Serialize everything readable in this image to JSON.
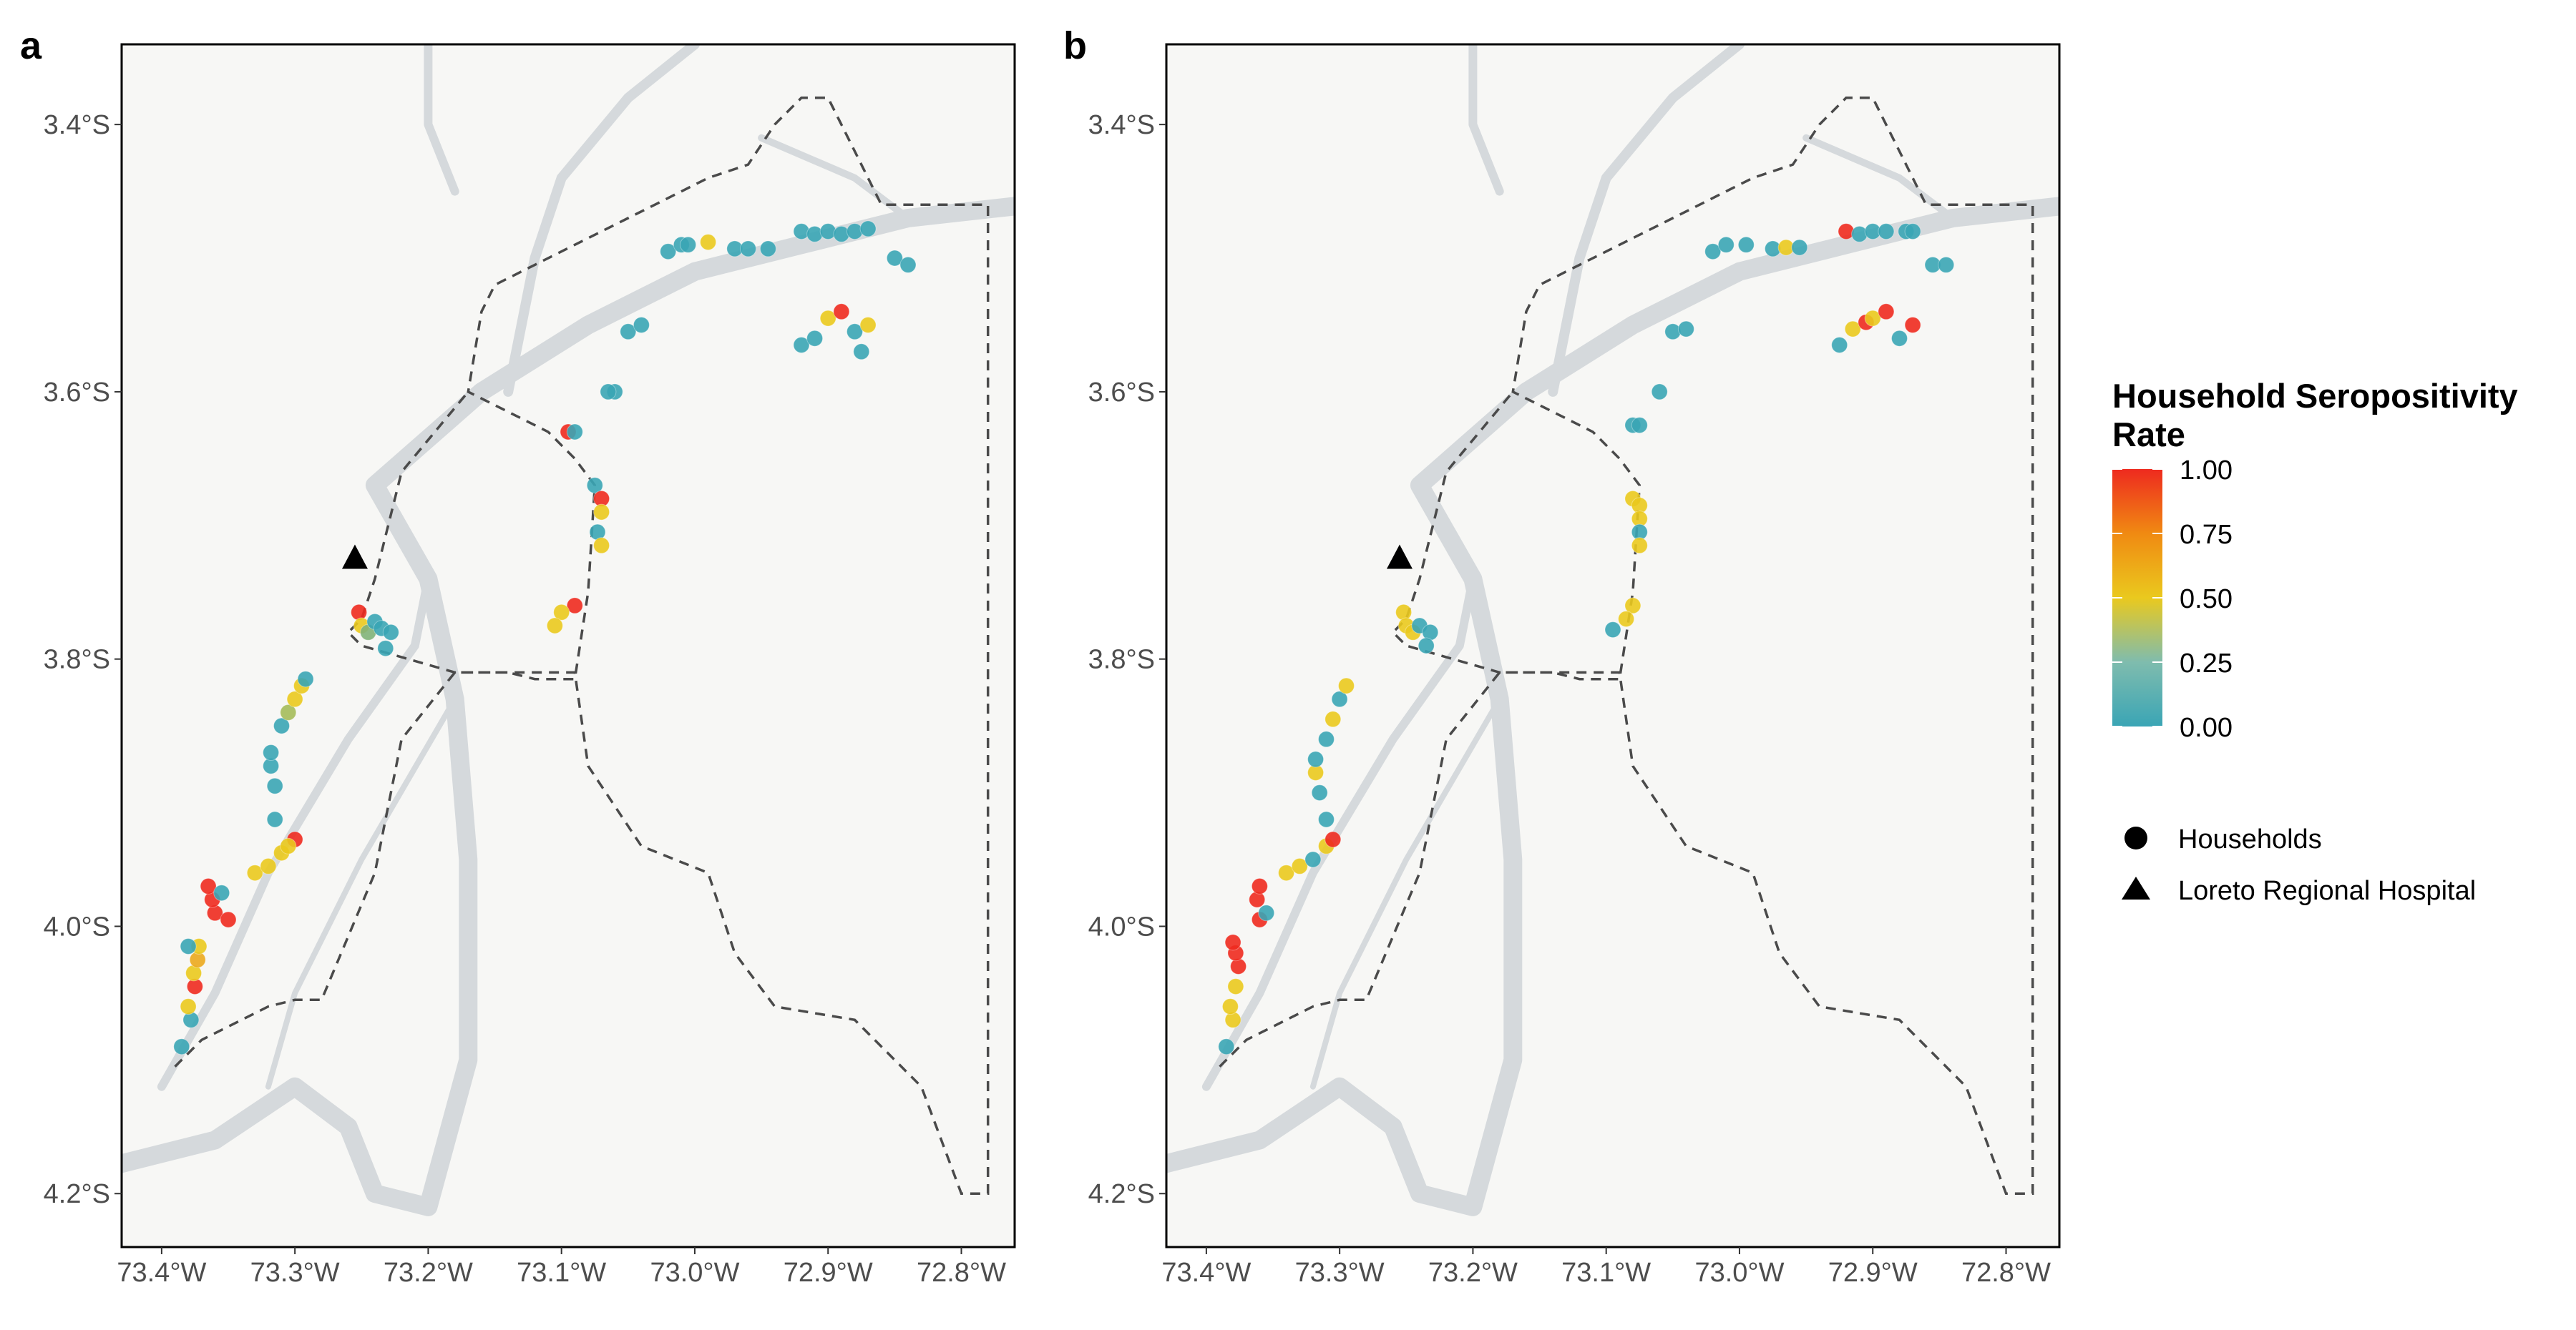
{
  "figure": {
    "panels": [
      {
        "letter": "a"
      },
      {
        "letter": "b"
      }
    ]
  },
  "axes": {
    "x_ticks": [
      "73.4°W",
      "73.3°W",
      "73.2°W",
      "73.1°W",
      "73.0°W",
      "72.9°W",
      "72.8°W"
    ],
    "x_tick_values": [
      -73.4,
      -73.3,
      -73.2,
      -73.1,
      -73.0,
      -72.9,
      -72.8
    ],
    "y_ticks": [
      "3.4°S",
      "3.6°S",
      "3.8°S",
      "4.0°S",
      "4.2°S"
    ],
    "y_tick_values": [
      -3.4,
      -3.6,
      -3.8,
      -4.0,
      -4.2
    ],
    "xlim": [
      -73.43,
      -72.76
    ],
    "ylim": [
      -4.24,
      -3.34
    ]
  },
  "legend": {
    "title_line1": "Household Seropositivity",
    "title_line2": "Rate",
    "colorbar_labels": [
      "1.00",
      "0.75",
      "0.50",
      "0.25",
      "0.00"
    ],
    "colorbar_values": [
      1.0,
      0.75,
      0.5,
      0.25,
      0.0
    ],
    "colors": {
      "low": "#3aa5b5",
      "mid": "#eac91e",
      "high": "#ee2a1f"
    },
    "households_label": "Households",
    "hospital_label": "Loreto Regional Hospital"
  },
  "chart_data": [
    {
      "type": "scatter",
      "panel": "a",
      "hospital": {
        "lon": -73.255,
        "lat": -3.725
      },
      "points": [
        [
          -73.385,
          -4.09,
          0
        ],
        [
          -73.378,
          -4.07,
          0
        ],
        [
          -73.38,
          -4.06,
          0.5
        ],
        [
          -73.375,
          -4.045,
          1
        ],
        [
          -73.376,
          -4.035,
          0.5
        ],
        [
          -73.373,
          -4.025,
          0.6
        ],
        [
          -73.372,
          -4.015,
          0.5
        ],
        [
          -73.38,
          -4.015,
          0
        ],
        [
          -73.36,
          -3.99,
          1
        ],
        [
          -73.35,
          -3.995,
          1
        ],
        [
          -73.362,
          -3.98,
          1
        ],
        [
          -73.365,
          -3.97,
          1
        ],
        [
          -73.355,
          -3.975,
          0
        ],
        [
          -73.33,
          -3.96,
          0.5
        ],
        [
          -73.32,
          -3.955,
          0.5
        ],
        [
          -73.31,
          -3.945,
          0.5
        ],
        [
          -73.3,
          -3.935,
          1
        ],
        [
          -73.305,
          -3.94,
          0.5
        ],
        [
          -73.315,
          -3.92,
          0
        ],
        [
          -73.315,
          -3.895,
          0
        ],
        [
          -73.318,
          -3.88,
          0
        ],
        [
          -73.318,
          -3.87,
          0
        ],
        [
          -73.31,
          -3.85,
          0
        ],
        [
          -73.305,
          -3.84,
          0.3
        ],
        [
          -73.3,
          -3.83,
          0.5
        ],
        [
          -73.295,
          -3.82,
          0.5
        ],
        [
          -73.292,
          -3.815,
          0
        ],
        [
          -73.252,
          -3.765,
          1
        ],
        [
          -73.25,
          -3.775,
          0.5
        ],
        [
          -73.245,
          -3.78,
          0.2
        ],
        [
          -73.24,
          -3.772,
          0
        ],
        [
          -73.235,
          -3.777,
          0
        ],
        [
          -73.228,
          -3.78,
          0
        ],
        [
          -73.232,
          -3.792,
          0
        ],
        [
          -73.095,
          -3.63,
          1
        ],
        [
          -73.09,
          -3.63,
          0
        ],
        [
          -73.06,
          -3.6,
          0
        ],
        [
          -73.065,
          -3.6,
          0
        ],
        [
          -73.05,
          -3.555,
          0
        ],
        [
          -73.04,
          -3.55,
          0
        ],
        [
          -73.075,
          -3.67,
          0
        ],
        [
          -73.07,
          -3.68,
          1
        ],
        [
          -73.07,
          -3.69,
          0.5
        ],
        [
          -73.073,
          -3.705,
          0
        ],
        [
          -73.07,
          -3.715,
          0.5
        ],
        [
          -73.09,
          -3.76,
          1
        ],
        [
          -73.1,
          -3.765,
          0.5
        ],
        [
          -73.105,
          -3.775,
          0.5
        ],
        [
          -73.02,
          -3.495,
          0
        ],
        [
          -73.01,
          -3.49,
          0
        ],
        [
          -73.005,
          -3.49,
          0
        ],
        [
          -72.99,
          -3.488,
          0.5
        ],
        [
          -72.97,
          -3.493,
          0
        ],
        [
          -72.96,
          -3.493,
          0
        ],
        [
          -72.945,
          -3.493,
          0
        ],
        [
          -72.92,
          -3.48,
          0
        ],
        [
          -72.91,
          -3.482,
          0
        ],
        [
          -72.9,
          -3.48,
          0
        ],
        [
          -72.89,
          -3.482,
          0
        ],
        [
          -72.88,
          -3.48,
          0
        ],
        [
          -72.87,
          -3.478,
          0
        ],
        [
          -72.85,
          -3.5,
          0
        ],
        [
          -72.84,
          -3.505,
          0
        ],
        [
          -72.92,
          -3.565,
          0
        ],
        [
          -72.91,
          -3.56,
          0
        ],
        [
          -72.9,
          -3.545,
          0.5
        ],
        [
          -72.89,
          -3.54,
          1
        ],
        [
          -72.88,
          -3.555,
          0
        ],
        [
          -72.875,
          -3.57,
          0
        ],
        [
          -72.87,
          -3.55,
          0.5
        ]
      ]
    },
    {
      "type": "scatter",
      "panel": "b",
      "hospital": {
        "lon": -73.255,
        "lat": -3.725
      },
      "points": [
        [
          -73.385,
          -4.09,
          0
        ],
        [
          -73.38,
          -4.07,
          0.5
        ],
        [
          -73.382,
          -4.06,
          0.5
        ],
        [
          -73.378,
          -4.045,
          0.5
        ],
        [
          -73.376,
          -4.03,
          1
        ],
        [
          -73.378,
          -4.02,
          1
        ],
        [
          -73.38,
          -4.012,
          1
        ],
        [
          -73.36,
          -3.995,
          1
        ],
        [
          -73.355,
          -3.99,
          0
        ],
        [
          -73.362,
          -3.98,
          1
        ],
        [
          -73.36,
          -3.97,
          1
        ],
        [
          -73.34,
          -3.96,
          0.5
        ],
        [
          -73.33,
          -3.955,
          0.5
        ],
        [
          -73.32,
          -3.95,
          0
        ],
        [
          -73.31,
          -3.94,
          0.5
        ],
        [
          -73.305,
          -3.935,
          1
        ],
        [
          -73.31,
          -3.92,
          0
        ],
        [
          -73.315,
          -3.9,
          0
        ],
        [
          -73.318,
          -3.885,
          0.5
        ],
        [
          -73.318,
          -3.875,
          0
        ],
        [
          -73.31,
          -3.86,
          0
        ],
        [
          -73.305,
          -3.845,
          0.5
        ],
        [
          -73.3,
          -3.83,
          0
        ],
        [
          -73.295,
          -3.82,
          0.5
        ],
        [
          -73.252,
          -3.765,
          0.5
        ],
        [
          -73.25,
          -3.775,
          0.5
        ],
        [
          -73.245,
          -3.78,
          0.5
        ],
        [
          -73.24,
          -3.775,
          0
        ],
        [
          -73.232,
          -3.78,
          0
        ],
        [
          -73.235,
          -3.79,
          0
        ],
        [
          -73.08,
          -3.625,
          0
        ],
        [
          -73.075,
          -3.625,
          0
        ],
        [
          -73.06,
          -3.6,
          0
        ],
        [
          -73.05,
          -3.555,
          0
        ],
        [
          -73.04,
          -3.553,
          0
        ],
        [
          -73.08,
          -3.68,
          0.5
        ],
        [
          -73.075,
          -3.685,
          0.5
        ],
        [
          -73.075,
          -3.695,
          0.5
        ],
        [
          -73.075,
          -3.705,
          0
        ],
        [
          -73.075,
          -3.715,
          0.5
        ],
        [
          -73.08,
          -3.76,
          0.5
        ],
        [
          -73.085,
          -3.77,
          0.5
        ],
        [
          -73.095,
          -3.778,
          0
        ],
        [
          -73.02,
          -3.495,
          0
        ],
        [
          -73.01,
          -3.49,
          0
        ],
        [
          -72.995,
          -3.49,
          0
        ],
        [
          -72.975,
          -3.493,
          0
        ],
        [
          -72.965,
          -3.492,
          0.5
        ],
        [
          -72.955,
          -3.492,
          0
        ],
        [
          -72.92,
          -3.48,
          1
        ],
        [
          -72.91,
          -3.482,
          0
        ],
        [
          -72.9,
          -3.48,
          0
        ],
        [
          -72.89,
          -3.48,
          0
        ],
        [
          -72.875,
          -3.48,
          0
        ],
        [
          -72.87,
          -3.48,
          0
        ],
        [
          -72.855,
          -3.505,
          0
        ],
        [
          -72.845,
          -3.505,
          0
        ],
        [
          -72.925,
          -3.565,
          0
        ],
        [
          -72.915,
          -3.553,
          0.5
        ],
        [
          -72.905,
          -3.548,
          1
        ],
        [
          -72.9,
          -3.545,
          0.5
        ],
        [
          -72.89,
          -3.54,
          1
        ],
        [
          -72.88,
          -3.56,
          0
        ],
        [
          -72.87,
          -3.55,
          1
        ]
      ]
    }
  ]
}
